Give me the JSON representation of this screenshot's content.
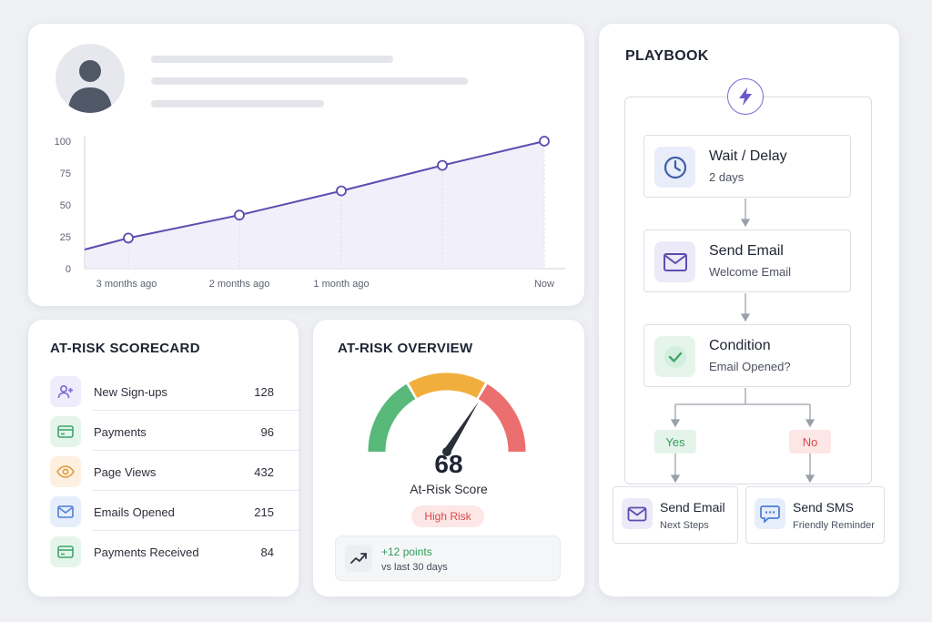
{
  "chart_data": {
    "type": "area",
    "categories": [
      "3 months ago",
      "2 months ago",
      "1 month ago",
      "",
      "Now"
    ],
    "x": [
      0,
      1,
      2,
      3,
      4
    ],
    "values": [
      24,
      42,
      61,
      81,
      100
    ],
    "y_ticks": [
      "100",
      "75",
      "50",
      "25",
      "0"
    ],
    "ylim": [
      0,
      100
    ],
    "title": "",
    "xlabel": "",
    "ylabel": "",
    "line_color": "#5b4db0",
    "fill_color": "#ece9f8"
  },
  "scorecard": {
    "title": "AT-RISK SCORECARD",
    "items": [
      {
        "label": "New Sign-ups",
        "value": "128",
        "icon": "user-plus-icon",
        "color": "#7a68d6",
        "bg": "#efecfb"
      },
      {
        "label": "Payments",
        "value": "96",
        "icon": "credit-card-icon",
        "color": "#3fa66a",
        "bg": "#e6f5ec"
      },
      {
        "label": "Page Views",
        "value": "432",
        "icon": "eye-icon",
        "color": "#e39a3a",
        "bg": "#fdf0e1"
      },
      {
        "label": "Emails Opened",
        "value": "215",
        "icon": "mail-icon",
        "color": "#4f7fd6",
        "bg": "#e6eefb"
      },
      {
        "label": "Payments Received",
        "value": "84",
        "icon": "credit-card-icon",
        "color": "#3fa66a",
        "bg": "#e6f5ec"
      }
    ]
  },
  "overview": {
    "title": "AT-RISK OVERVIEW",
    "score": "68",
    "score_label": "At-Risk Score",
    "risk_label": "High Risk",
    "gauge_value": 68,
    "gauge_colors": [
      "#58b97a",
      "#f2ae3d",
      "#ec6f6f"
    ],
    "trend_text": "+12 points",
    "trend_sub": "vs last 30 days"
  },
  "playbook": {
    "title": "PLAYBOOK",
    "steps": [
      {
        "title": "Wait / Delay",
        "subtitle": "2 days",
        "icon": "clock-icon"
      },
      {
        "title": "Send Email",
        "subtitle": "Welcome Email",
        "icon": "mail-icon"
      },
      {
        "title": "Condition",
        "subtitle": "Email Opened?",
        "icon": "check-circle-icon"
      }
    ],
    "yes_label": "Yes",
    "no_label": "No",
    "branches": [
      {
        "title": "Send Email",
        "subtitle": "Next Steps",
        "icon": "mail-icon"
      },
      {
        "title": "Send SMS",
        "subtitle": "Friendly Reminder",
        "icon": "chat-icon"
      }
    ]
  }
}
